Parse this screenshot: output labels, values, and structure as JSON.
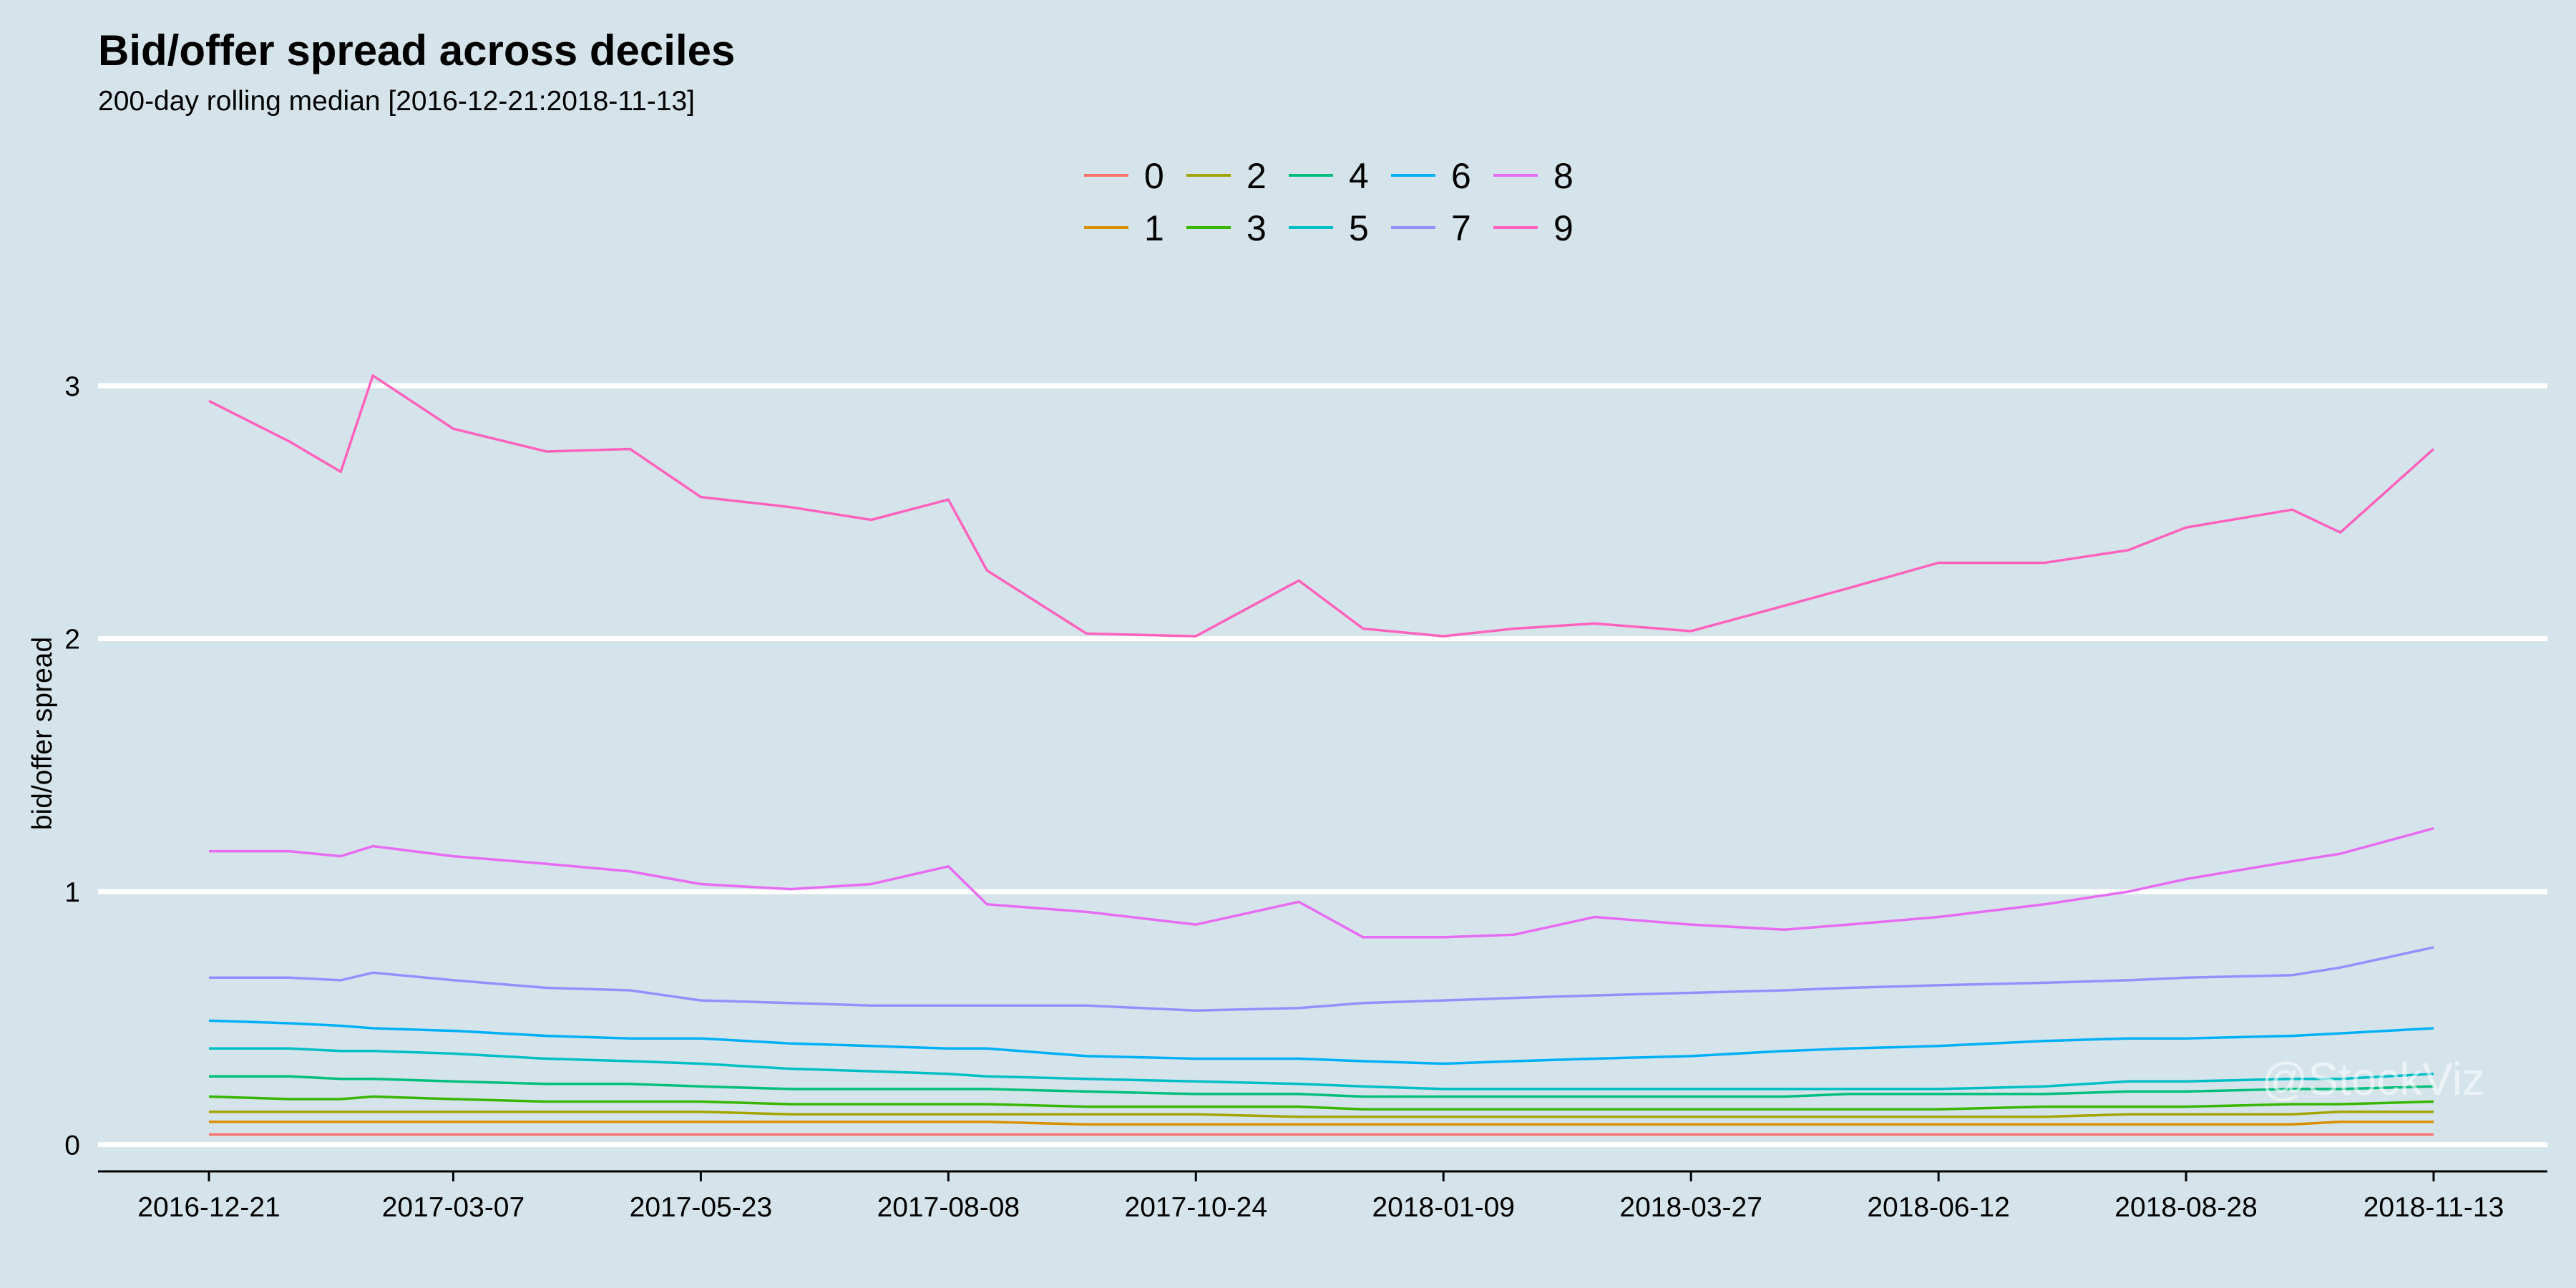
{
  "chart_data": {
    "type": "line",
    "title": "Bid/offer spread across deciles",
    "subtitle": "200-day rolling median [2016-12-21:2018-11-13]",
    "xlabel": "",
    "ylabel": "bid/offer spread",
    "ylim": [
      -0.1,
      3.45
    ],
    "yticks": [
      0,
      1,
      2,
      3
    ],
    "grid": "horizontal",
    "legend": "top-center",
    "watermark": "@StockViz",
    "x": [
      "2016-12-21",
      "2017-01-15",
      "2017-01-31",
      "2017-02-10",
      "2017-03-07",
      "2017-04-05",
      "2017-05-01",
      "2017-05-23",
      "2017-06-20",
      "2017-07-15",
      "2017-08-08",
      "2017-08-20",
      "2017-09-20",
      "2017-10-24",
      "2017-11-25",
      "2017-12-15",
      "2018-01-09",
      "2018-01-31",
      "2018-02-25",
      "2018-03-27",
      "2018-04-25",
      "2018-05-15",
      "2018-06-12",
      "2018-07-15",
      "2018-08-10",
      "2018-08-28",
      "2018-09-30",
      "2018-10-15",
      "2018-11-13"
    ],
    "xticks": [
      "2016-12-21",
      "2017-03-07",
      "2017-05-23",
      "2017-08-08",
      "2017-10-24",
      "2018-01-09",
      "2018-03-27",
      "2018-06-12",
      "2018-08-28",
      "2018-11-13"
    ],
    "series": [
      {
        "name": "0",
        "color": "#F8766D",
        "values": [
          0.04,
          0.04,
          0.04,
          0.04,
          0.04,
          0.04,
          0.04,
          0.04,
          0.04,
          0.04,
          0.04,
          0.04,
          0.04,
          0.04,
          0.04,
          0.04,
          0.04,
          0.04,
          0.04,
          0.04,
          0.04,
          0.04,
          0.04,
          0.04,
          0.04,
          0.04,
          0.04,
          0.04,
          0.04
        ]
      },
      {
        "name": "1",
        "color": "#D89000",
        "values": [
          0.09,
          0.09,
          0.09,
          0.09,
          0.09,
          0.09,
          0.09,
          0.09,
          0.09,
          0.09,
          0.09,
          0.09,
          0.08,
          0.08,
          0.08,
          0.08,
          0.08,
          0.08,
          0.08,
          0.08,
          0.08,
          0.08,
          0.08,
          0.08,
          0.08,
          0.08,
          0.08,
          0.09,
          0.09
        ]
      },
      {
        "name": "2",
        "color": "#A3A500",
        "values": [
          0.13,
          0.13,
          0.13,
          0.13,
          0.13,
          0.13,
          0.13,
          0.13,
          0.12,
          0.12,
          0.12,
          0.12,
          0.12,
          0.12,
          0.11,
          0.11,
          0.11,
          0.11,
          0.11,
          0.11,
          0.11,
          0.11,
          0.11,
          0.11,
          0.12,
          0.12,
          0.12,
          0.13,
          0.13
        ]
      },
      {
        "name": "3",
        "color": "#39B600",
        "values": [
          0.19,
          0.18,
          0.18,
          0.19,
          0.18,
          0.17,
          0.17,
          0.17,
          0.16,
          0.16,
          0.16,
          0.16,
          0.15,
          0.15,
          0.15,
          0.14,
          0.14,
          0.14,
          0.14,
          0.14,
          0.14,
          0.14,
          0.14,
          0.15,
          0.15,
          0.15,
          0.16,
          0.16,
          0.17
        ]
      },
      {
        "name": "4",
        "color": "#00BF7D",
        "values": [
          0.27,
          0.27,
          0.26,
          0.26,
          0.25,
          0.24,
          0.24,
          0.23,
          0.22,
          0.22,
          0.22,
          0.22,
          0.21,
          0.2,
          0.2,
          0.19,
          0.19,
          0.19,
          0.19,
          0.19,
          0.19,
          0.2,
          0.2,
          0.2,
          0.21,
          0.21,
          0.22,
          0.22,
          0.23
        ]
      },
      {
        "name": "5",
        "color": "#00BFC4",
        "values": [
          0.38,
          0.38,
          0.37,
          0.37,
          0.36,
          0.34,
          0.33,
          0.32,
          0.3,
          0.29,
          0.28,
          0.27,
          0.26,
          0.25,
          0.24,
          0.23,
          0.22,
          0.22,
          0.22,
          0.22,
          0.22,
          0.22,
          0.22,
          0.23,
          0.25,
          0.25,
          0.26,
          0.26,
          0.28
        ]
      },
      {
        "name": "6",
        "color": "#00B0F6",
        "values": [
          0.49,
          0.48,
          0.47,
          0.46,
          0.45,
          0.43,
          0.42,
          0.42,
          0.4,
          0.39,
          0.38,
          0.38,
          0.35,
          0.34,
          0.34,
          0.33,
          0.32,
          0.33,
          0.34,
          0.35,
          0.37,
          0.38,
          0.39,
          0.41,
          0.42,
          0.42,
          0.43,
          0.44,
          0.46
        ]
      },
      {
        "name": "7",
        "color": "#9590FF",
        "values": [
          0.66,
          0.66,
          0.65,
          0.68,
          0.65,
          0.62,
          0.61,
          0.57,
          0.56,
          0.55,
          0.55,
          0.55,
          0.55,
          0.53,
          0.54,
          0.56,
          0.57,
          0.58,
          0.59,
          0.6,
          0.61,
          0.62,
          0.63,
          0.64,
          0.65,
          0.66,
          0.67,
          0.7,
          0.78
        ]
      },
      {
        "name": "8",
        "color": "#E76BF3",
        "values": [
          1.16,
          1.16,
          1.14,
          1.18,
          1.14,
          1.11,
          1.08,
          1.03,
          1.01,
          1.03,
          1.1,
          0.95,
          0.92,
          0.87,
          0.96,
          0.82,
          0.82,
          0.83,
          0.9,
          0.87,
          0.85,
          0.87,
          0.9,
          0.95,
          1.0,
          1.05,
          1.12,
          1.15,
          1.25
        ]
      },
      {
        "name": "9",
        "color": "#FF62BC",
        "values": [
          2.94,
          2.78,
          2.66,
          3.04,
          2.83,
          2.74,
          2.75,
          2.56,
          2.52,
          2.47,
          2.55,
          2.27,
          2.02,
          2.01,
          2.23,
          2.04,
          2.01,
          2.04,
          2.06,
          2.03,
          2.13,
          2.2,
          2.3,
          2.3,
          2.35,
          2.44,
          2.51,
          2.42,
          2.75
        ]
      }
    ]
  }
}
